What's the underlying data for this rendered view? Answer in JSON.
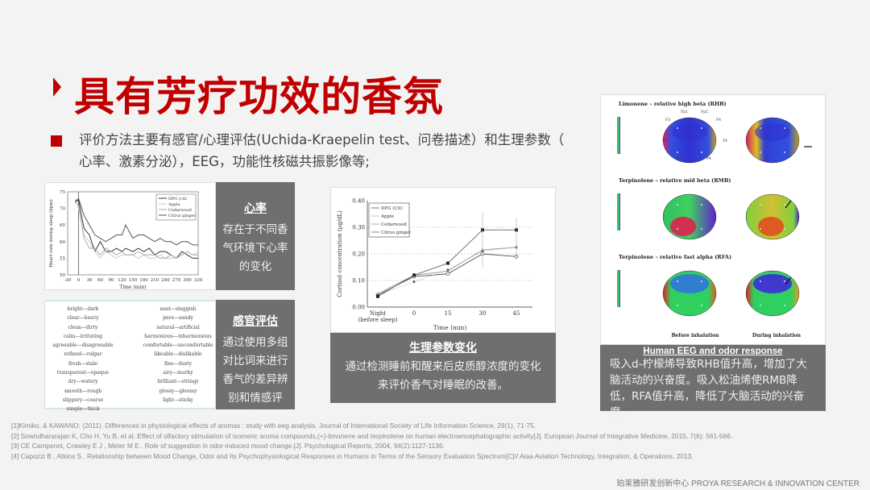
{
  "title": "具有芳疗功效的香氛",
  "bullet": "评价方法主要有感官/心理评估(Uchida-Kraepelin  test、问卷描述）和生理参数（ 心率、激素分泌），EEG，功能性核磁共振影像等;",
  "colors": {
    "accent": "#c00000",
    "panel_gray": "#6f6f6f",
    "background": "#f3f3f3"
  },
  "panels": {
    "heart": {
      "heading": "心率",
      "text": "存在于不同香气环境下心率的变化"
    },
    "sensory": {
      "heading": "感官评估",
      "text": "通过使用多组对比词来进行香气的差异辨别和情感评估。",
      "pairs_left": [
        "bright—dark",
        "clear—heavy",
        "clean—dirty",
        "calm—irritating",
        "agreeable—disagreeable",
        "refined—vulgar",
        "fresh—stale",
        "transparent—opaque",
        "dry—watery",
        "smooth—rough",
        "slippery—coarse",
        "simple—thick"
      ],
      "pairs_right": [
        "neat—sluggish",
        "pure—sandy",
        "natural—artificial",
        "harmonious—inharmonious",
        "comfortable—uncomfortable",
        "likeable—dislikable",
        "fine—dusty",
        "airy—murky",
        "brilliant—stringy",
        "glossy—gloomy",
        "light—sticky"
      ]
    },
    "physio": {
      "heading": "生理参数变化",
      "text": "通过检测睡前和醒来后皮质醇浓度的变化来评价香气对睡眠的改善。"
    },
    "eeg": {
      "heading": "Human EEG and odor response",
      "text": "吸入d-柠檬烯导致RHB值升高，增加了大脑活动的兴奋度。吸入松油烯使RMB降低，RFA值升高，降低了大脑活动的兴奋度，",
      "rows": [
        "Limonene – relative high beta (RHB)",
        "Terpinolene – relative mid beta (RMB)",
        "Terpinolene – relative fast alpha (RFA)"
      ],
      "electrodes": [
        "Fp1",
        "Fp2",
        "F3",
        "F4",
        "T3",
        "T4",
        "P3",
        "P4"
      ],
      "col_labels": [
        "Before inhalation",
        "During inhalation"
      ]
    }
  },
  "chart_data": [
    {
      "type": "line",
      "xlabel": "Time (min)",
      "ylabel": "Heart rate during sleep (bpm)",
      "xlim": [
        -30,
        330
      ],
      "ylim": [
        50,
        75
      ],
      "xticks": [
        -30,
        0,
        30,
        60,
        90,
        120,
        150,
        180,
        210,
        240,
        270,
        300,
        330
      ],
      "yticks": [
        50,
        55,
        60,
        65,
        70,
        75
      ],
      "legend": "top-right",
      "x": [
        -10,
        0,
        15,
        30,
        45,
        60,
        75,
        90,
        105,
        120,
        130,
        150,
        165,
        180,
        195,
        210,
        225,
        240,
        255,
        270,
        285,
        300,
        315,
        330
      ],
      "series": [
        {
          "name": "DPG (ctl)",
          "color": "#333333",
          "values": [
            72,
            72.5,
            64,
            62,
            57,
            60,
            57,
            57,
            58,
            57,
            58,
            57,
            58,
            57,
            58,
            56,
            57,
            57,
            56,
            55,
            57,
            56,
            55,
            55
          ]
        },
        {
          "name": "Apple",
          "color": "#cccccc",
          "values": [
            73,
            70,
            62,
            60,
            57,
            55,
            57,
            56,
            55,
            56,
            56,
            56,
            55,
            56,
            55,
            55,
            56,
            55,
            55,
            55,
            56,
            57,
            56,
            57
          ]
        },
        {
          "name": "Cedarwood",
          "color": "#aaaaaa",
          "values": [
            72,
            71,
            61,
            58,
            58,
            56,
            58,
            57,
            56,
            57,
            56,
            56,
            57,
            56,
            56,
            56,
            55,
            55,
            56,
            55,
            56,
            57,
            56,
            56
          ]
        },
        {
          "name": "Citrus ginger",
          "color": "#555555",
          "values": [
            72,
            73,
            68,
            65,
            62,
            61,
            60,
            61,
            62,
            62,
            65,
            61,
            62,
            62,
            61,
            60,
            61,
            60,
            60,
            59,
            60,
            60,
            59,
            59
          ]
        }
      ]
    },
    {
      "type": "line",
      "xlabel": "Time (min)",
      "ylabel": "Cortisol concentration (μg/dL)",
      "ylim": [
        0,
        0.4
      ],
      "categories": [
        "Night (before sleep)",
        "0",
        "15",
        "30",
        "45"
      ],
      "yticks": [
        "0.00",
        "0.10",
        "0.20",
        "0.30",
        "0.40"
      ],
      "legend": "top-left",
      "series": [
        {
          "name": "DPG (Ctl)",
          "marker": "open-circle",
          "color": "#555555",
          "values": [
            0.045,
            0.115,
            0.125,
            0.2,
            0.19
          ]
        },
        {
          "name": "Apple",
          "marker": "star",
          "color": "#bbbbbb",
          "values": [
            0.045,
            0.095,
            0.14,
            0.21,
            0.225
          ]
        },
        {
          "name": "Cedarwood",
          "marker": "triangle",
          "color": "#999999",
          "values": [
            0.05,
            0.12,
            0.135,
            0.215,
            0.225
          ]
        },
        {
          "name": "Citrus ginger",
          "marker": "square",
          "color": "#666666",
          "values": [
            0.04,
            0.12,
            0.165,
            0.29,
            0.29
          ]
        }
      ]
    }
  ],
  "references": [
    "[1]Kimiko, & KAWANO. (2011). Differences in physiological effects of aromas : study with eeg analysis. Journal of International Society of Life Information Science, 29(1), 71-75.",
    "[2] Sowndhararajan K, Cho H, Yu B, et al. Effect of olfactory stimulation of isomeric aroma compounds,(+)-limonene and terpinolene on human electroencephalographic activity[J]. European Journal of Integrative Medicine, 2015, 7(6): 561-566.",
    "[3] CE   Campenni,  Crawley E J ,   Meter M E . Role of suggestion in odor-induced mood change.[J]. Psychological Reports, 2004, 94(2):1127-1136.",
    "[4] Capozzi B ,   Atkins S . Relationship between Mood Change, Odor and Its Psychophysiological Responses in Humans in Terms of the Sensory Evaluation Spectrum[C]// Aiaa Aviation Technology, Integration, & Operations. 2013."
  ],
  "footer": "珀莱雅研发创新中心  PROYA RESEARCH  &  INNOVATION  CENTER"
}
